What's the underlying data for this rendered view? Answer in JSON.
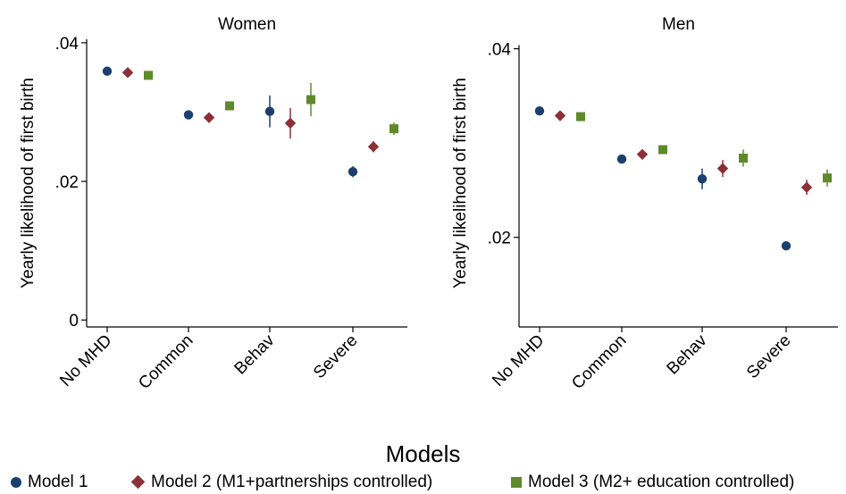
{
  "chart_data": [
    {
      "type": "scatter",
      "title": "Women",
      "xlabel": "",
      "ylabel": "Yearly likelihood of first birth",
      "categories": [
        "No MHD",
        "Common",
        "Behav",
        "Severe"
      ],
      "yticks": [
        {
          "value": 0,
          "label": "0"
        },
        {
          "value": 0.02,
          "label": ".02"
        },
        {
          "value": 0.04,
          "label": ".04"
        }
      ],
      "ylim": [
        -0.001,
        0.0405
      ],
      "series": [
        {
          "name": "Model 1",
          "marker": "circle",
          "values": [
            0.0359,
            0.0296,
            0.0301,
            0.0214
          ],
          "ci_low": [
            0.0357,
            0.0293,
            0.0278,
            0.0206
          ],
          "ci_high": [
            0.0361,
            0.0299,
            0.0324,
            0.0222
          ]
        },
        {
          "name": "Model 2 (M1+partnerships controlled)",
          "marker": "diamond",
          "values": [
            0.0357,
            0.0292,
            0.0284,
            0.025
          ],
          "ci_low": [
            0.0355,
            0.0289,
            0.0262,
            0.0242
          ],
          "ci_high": [
            0.0359,
            0.0295,
            0.0306,
            0.0258
          ]
        },
        {
          "name": "Model 3 (M2+ education controlled)",
          "marker": "square",
          "values": [
            0.0353,
            0.0309,
            0.0318,
            0.0276
          ],
          "ci_low": [
            0.0351,
            0.0306,
            0.0294,
            0.0267
          ],
          "ci_high": [
            0.0355,
            0.0312,
            0.0342,
            0.0285
          ]
        }
      ]
    },
    {
      "type": "scatter",
      "title": "Men",
      "xlabel": "",
      "ylabel": "Yearly likelihood of first birth",
      "categories": [
        "No MHD",
        "Common",
        "Behav",
        "Severe"
      ],
      "yticks": [
        {
          "value": 0.02,
          "label": ".02"
        },
        {
          "value": 0.04,
          "label": ".04"
        }
      ],
      "ylim": [
        0.0105,
        0.041
      ],
      "series": [
        {
          "name": "Model 1",
          "marker": "circle",
          "values": [
            0.0334,
            0.0283,
            0.0262,
            0.0191
          ],
          "ci_low": [
            0.0332,
            0.028,
            0.0251,
            0.0187
          ],
          "ci_high": [
            0.0336,
            0.0286,
            0.0273,
            0.0195
          ]
        },
        {
          "name": "Model 2 (M1+partnerships controlled)",
          "marker": "diamond",
          "values": [
            0.0329,
            0.0288,
            0.0273,
            0.0253
          ],
          "ci_low": [
            0.0327,
            0.0285,
            0.0264,
            0.0245
          ],
          "ci_high": [
            0.0331,
            0.0291,
            0.0282,
            0.0261
          ]
        },
        {
          "name": "Model 3 (M2+ education controlled)",
          "marker": "square",
          "values": [
            0.0328,
            0.0293,
            0.0284,
            0.0263
          ],
          "ci_low": [
            0.0326,
            0.029,
            0.0275,
            0.0254
          ],
          "ci_high": [
            0.033,
            0.0296,
            0.0293,
            0.0272
          ]
        }
      ]
    }
  ],
  "legend": {
    "title": "Models",
    "placement": "bottom",
    "items": [
      {
        "label": "Model 1",
        "marker": "circle"
      },
      {
        "label": "Model 2 (M1+partnerships controlled)",
        "marker": "diamond"
      },
      {
        "label": "Model 3 (M2+ education controlled)",
        "marker": "square"
      }
    ]
  },
  "colors": {
    "model1": "#1b3f6e",
    "model2": "#8c3038",
    "model3": "#5f8a2c",
    "axis": "#000000"
  }
}
